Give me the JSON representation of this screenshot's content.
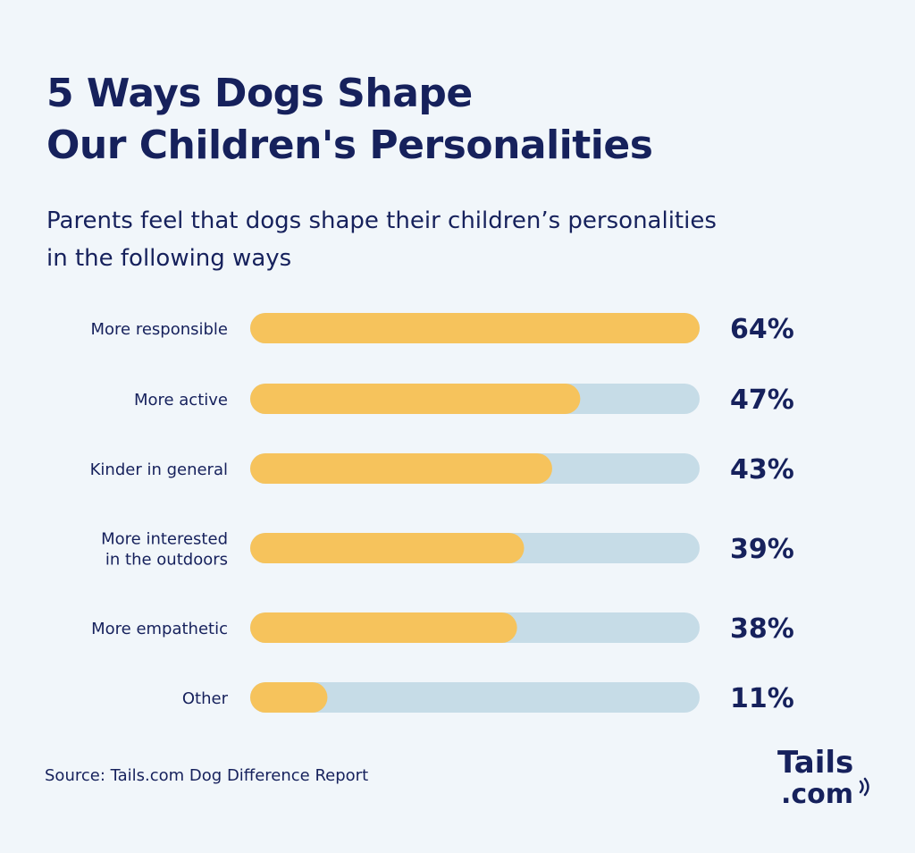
{
  "title_lines": [
    "5 Ways Dogs Shape",
    "Our Children's Personalities"
  ],
  "subtitle_lines": [
    "Parents feel that dogs shape their children’s personalities",
    "in the following ways"
  ],
  "source": "Source: Tails.com Dog Difference Report",
  "logo": {
    "line1": "Tails",
    "line2": ".com"
  },
  "colors": {
    "bar_fill": "#f6c35c",
    "bar_track": "#c6dce7",
    "text": "#16215c",
    "background": "#f1f6fa"
  },
  "chart_data": {
    "type": "bar",
    "orientation": "horizontal",
    "categories": [
      [
        "More responsible"
      ],
      [
        "More active"
      ],
      [
        "Kinder in general"
      ],
      [
        "More interested",
        "in the outdoors"
      ],
      [
        "More empathetic"
      ],
      [
        "Other"
      ]
    ],
    "values": [
      64,
      47,
      43,
      39,
      38,
      11
    ],
    "value_labels": [
      "64%",
      "47%",
      "43%",
      "39%",
      "38%",
      "11%"
    ],
    "xlim": [
      0,
      64
    ],
    "unit": "%",
    "grid": false,
    "legend": "none"
  }
}
